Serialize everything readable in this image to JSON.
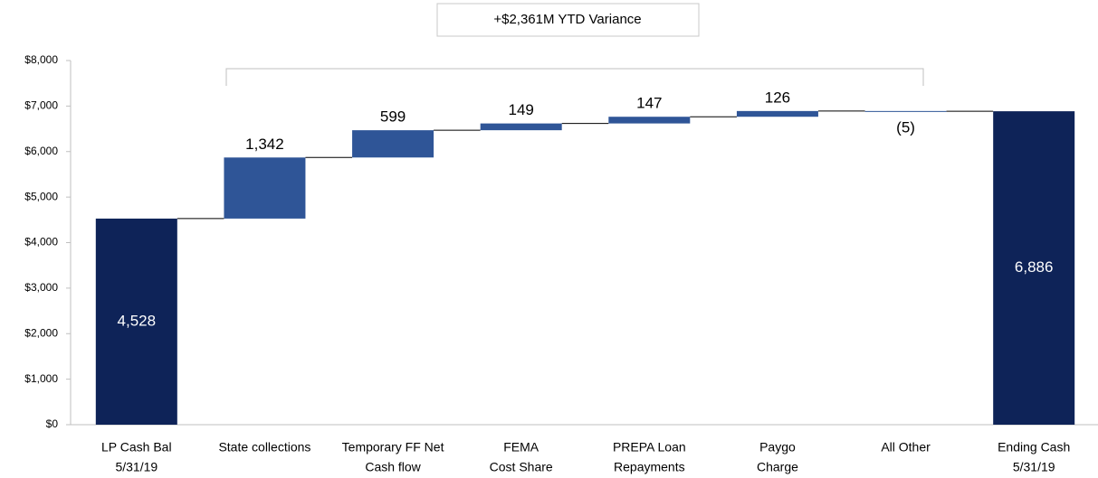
{
  "chart_data": {
    "type": "waterfall",
    "annotation": "+$2,361M YTD Variance",
    "categories": [
      [
        "LP Cash Bal",
        "5/31/19"
      ],
      [
        "State collections"
      ],
      [
        "Temporary FF Net",
        "Cash flow"
      ],
      [
        "FEMA",
        "Cost Share"
      ],
      [
        "PREPA Loan",
        "Repayments"
      ],
      [
        "Paygo",
        "Charge"
      ],
      [
        "All Other"
      ],
      [
        "Ending Cash",
        "5/31/19"
      ]
    ],
    "values": [
      4528,
      1342,
      599,
      149,
      147,
      126,
      -5,
      6886
    ],
    "value_labels": [
      "4,528",
      "1,342",
      "599",
      "149",
      "147",
      "126",
      "(5)",
      "6,886"
    ],
    "is_total": [
      true,
      false,
      false,
      false,
      false,
      false,
      false,
      true
    ],
    "total_color": "#0e2358",
    "change_color": "#2f5597",
    "ylim": [
      0,
      8000
    ],
    "yticks": [
      {
        "value": 0,
        "label": "$0"
      },
      {
        "value": 1000,
        "label": "$1,000"
      },
      {
        "value": 2000,
        "label": "$2,000"
      },
      {
        "value": 3000,
        "label": "$3,000"
      },
      {
        "value": 4000,
        "label": "$4,000"
      },
      {
        "value": 5000,
        "label": "$5,000"
      },
      {
        "value": 6000,
        "label": "$6,000"
      },
      {
        "value": 7000,
        "label": "$7,000"
      },
      {
        "value": 8000,
        "label": "$8,000"
      }
    ]
  }
}
